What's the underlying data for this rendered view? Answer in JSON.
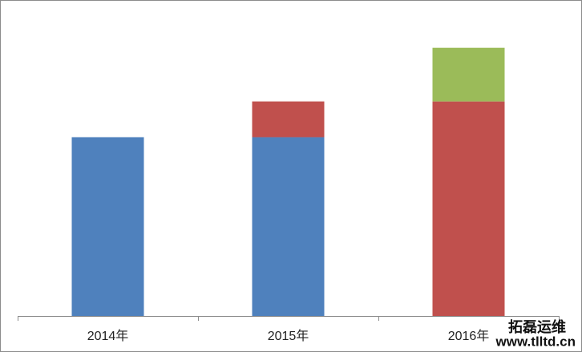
{
  "chart_data": {
    "type": "stacked_bar",
    "categories": [
      "2014年",
      "2015年",
      "2016年"
    ],
    "series": [
      {
        "color": "#4f81bd",
        "values": [
          100,
          100,
          null
        ]
      },
      {
        "color": "#c0504d",
        "values": [
          null,
          20,
          120
        ]
      },
      {
        "color": "#9bbb59",
        "values": [
          null,
          null,
          30
        ]
      }
    ],
    "ylim": [
      0,
      170
    ],
    "watermark": [
      "拓磊运维",
      "www.tlltd.cn"
    ]
  }
}
